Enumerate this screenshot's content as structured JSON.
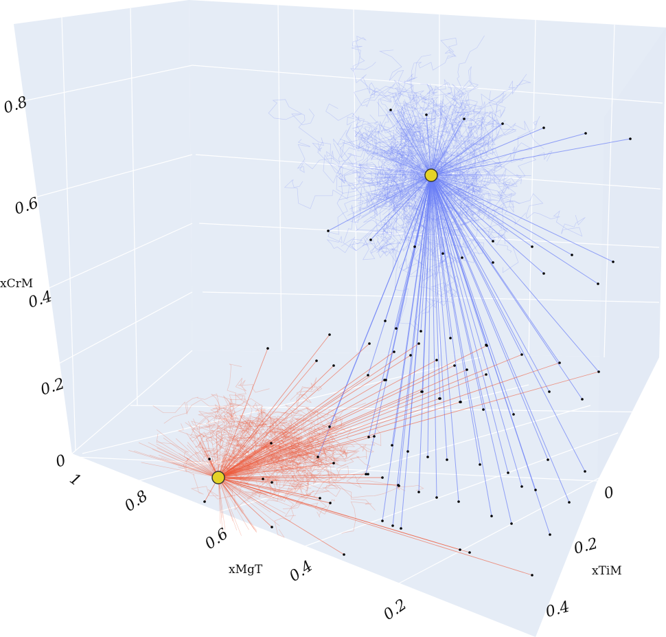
{
  "chart_data": {
    "type": "3d-scatter-line",
    "title": "",
    "axes": {
      "x": {
        "label": "xMgT",
        "ticks": [
          "1",
          "0.8",
          "0.6",
          "0.4",
          "0.2"
        ],
        "range": [
          1,
          0.1
        ]
      },
      "y": {
        "label": "xTiM",
        "ticks": [
          "0",
          "0.2",
          "0.4"
        ],
        "range": [
          0,
          0.45
        ]
      },
      "z": {
        "label": "xCrM",
        "ticks": [
          "0",
          "0.2",
          "0.4",
          "0.6",
          "0.8"
        ],
        "range": [
          0,
          0.9
        ]
      }
    },
    "grid": true,
    "legend": "none",
    "series": [
      {
        "color": "#6a7ef7",
        "mode": "lines",
        "hub": {
          "xMgT": 0.25,
          "xTiM": 0.1,
          "xCrM": 0.62
        },
        "hub_marker_color": "#e4d327"
      },
      {
        "color": "#ee5535",
        "mode": "lines",
        "hub": {
          "xMgT": 0.88,
          "xTiM": 0.1,
          "xCrM": 0.01
        },
        "hub_marker_color": "#e4d327"
      }
    ],
    "point_color": "#000000",
    "background_color": "#e5ecf6",
    "grid_color": "#ffffff"
  }
}
